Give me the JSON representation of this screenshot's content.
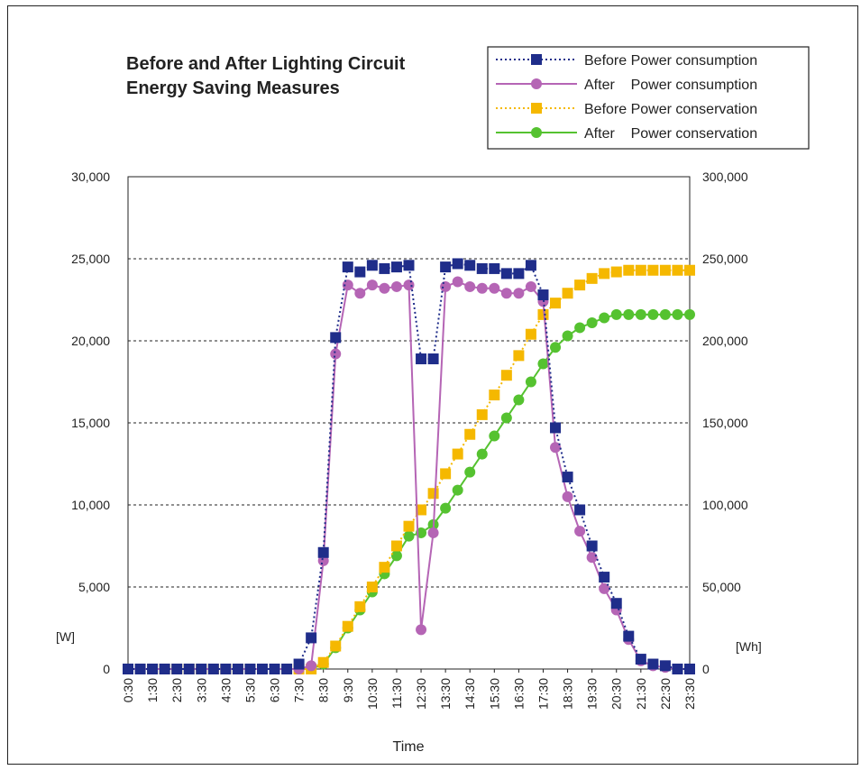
{
  "chart_data": {
    "type": "line",
    "title": [
      "Before and After Lighting Circuit",
      "Energy Saving Measures"
    ],
    "xlabel": "Time",
    "left_unit": "[W]",
    "right_unit": "[Wh]",
    "ylim_left": [
      0,
      30000
    ],
    "ylim_right": [
      0,
      300000
    ],
    "y_ticks_left": [
      "0",
      "5,000",
      "10,000",
      "15,000",
      "20,000",
      "25,000",
      "30,000"
    ],
    "y_ticks_right": [
      "0",
      "50,000",
      "100,000",
      "150,000",
      "200,000",
      "250,000",
      "300,000"
    ],
    "x_tick_labels": [
      "0:30",
      "1:30",
      "2:30",
      "3:30",
      "4:30",
      "5:30",
      "6:30",
      "7:30",
      "8:30",
      "9:30",
      "10:30",
      "11:30",
      "12:30",
      "13:30",
      "14:30",
      "15:30",
      "16:30",
      "17:30",
      "18:30",
      "19:30",
      "20:30",
      "21:30",
      "22:30",
      "23:30"
    ],
    "x": [
      0,
      0.5,
      1,
      1.5,
      2,
      2.5,
      3,
      3.5,
      4,
      4.5,
      5,
      5.5,
      6,
      6.5,
      7,
      7.5,
      8,
      8.5,
      9,
      9.5,
      10,
      10.5,
      11,
      11.5,
      12,
      12.5,
      13,
      13.5,
      14,
      14.5,
      15,
      15.5,
      16,
      16.5,
      17,
      17.5,
      18,
      18.5,
      19,
      19.5,
      20,
      20.5,
      21,
      21.5,
      22,
      22.5,
      23
    ],
    "grid": "horizontal-dotted",
    "legend_position": "top-right",
    "series": [
      {
        "name": "Before Power consumption",
        "axis": "left",
        "color": "#1f2d8a",
        "marker": "square",
        "dash": "dotted",
        "values": [
          0,
          0,
          0,
          0,
          0,
          0,
          0,
          0,
          0,
          0,
          0,
          0,
          0,
          0,
          300,
          1900,
          7100,
          20200,
          24500,
          24200,
          24600,
          24400,
          24500,
          24600,
          18900,
          18900,
          24500,
          24700,
          24600,
          24400,
          24400,
          24100,
          24100,
          24600,
          22800,
          14700,
          11700,
          9700,
          7500,
          5600,
          4000,
          2000,
          600,
          300,
          200,
          0,
          0
        ]
      },
      {
        "name": "After    Power consumption",
        "axis": "left",
        "color": "#b565b5",
        "marker": "circle",
        "dash": "solid",
        "values": [
          0,
          0,
          0,
          0,
          0,
          0,
          0,
          0,
          0,
          0,
          0,
          0,
          0,
          0,
          0,
          200,
          6600,
          19200,
          23400,
          22900,
          23400,
          23200,
          23300,
          23400,
          2400,
          8300,
          23300,
          23600,
          23300,
          23200,
          23200,
          22900,
          22900,
          23300,
          22400,
          13500,
          10500,
          8400,
          6800,
          4900,
          3600,
          1800,
          500,
          200,
          100,
          0,
          0
        ]
      },
      {
        "name": "Before Power conservation",
        "axis": "right",
        "color": "#f5b800",
        "marker": "square",
        "dash": "dotted",
        "values": [
          0,
          0,
          0,
          0,
          0,
          0,
          0,
          0,
          0,
          0,
          0,
          0,
          0,
          0,
          0,
          0,
          4000,
          14000,
          26000,
          38000,
          50000,
          62000,
          75000,
          87000,
          97000,
          107000,
          119000,
          131000,
          143000,
          155000,
          167000,
          179000,
          191000,
          204000,
          216000,
          223000,
          229000,
          234000,
          238000,
          241000,
          242000,
          243000,
          243000,
          243000,
          243000,
          243000,
          243000
        ]
      },
      {
        "name": "After    Power conservation",
        "axis": "right",
        "color": "#55c230",
        "marker": "circle",
        "dash": "solid",
        "values": [
          0,
          0,
          0,
          0,
          0,
          0,
          0,
          0,
          0,
          0,
          0,
          0,
          0,
          0,
          0,
          0,
          3000,
          13000,
          25000,
          36000,
          47000,
          58000,
          69000,
          81000,
          83000,
          88000,
          98000,
          109000,
          120000,
          131000,
          142000,
          153000,
          164000,
          175000,
          186000,
          196000,
          203000,
          208000,
          211000,
          214000,
          216000,
          216000,
          216000,
          216000,
          216000,
          216000,
          216000
        ]
      }
    ]
  }
}
